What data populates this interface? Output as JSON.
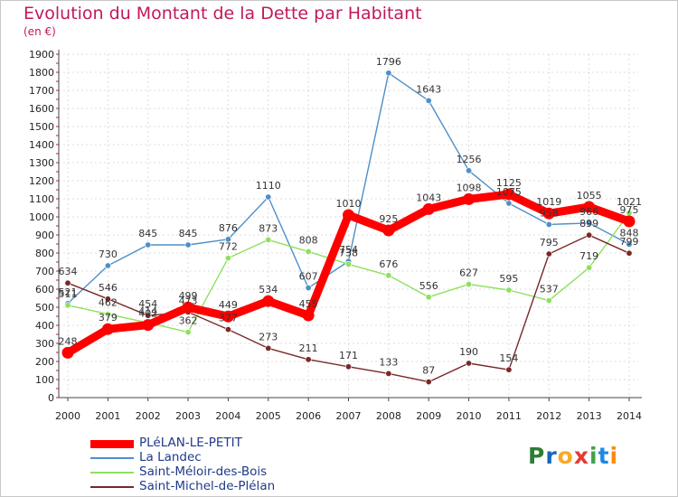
{
  "title": "Evolution du Montant de la Dette par Habitant",
  "unit": "(en €)",
  "brand": [
    "P",
    "r",
    "o",
    "x",
    "i",
    "t",
    "i"
  ],
  "brand_colors": [
    "#2e7d32",
    "#1565c0",
    "#f9a825",
    "#e53935",
    "#43a047",
    "#1e88e5",
    "#fb8c00"
  ],
  "chart_data": {
    "type": "line",
    "x": [
      "2000",
      "2001",
      "2002",
      "2003",
      "2004",
      "2005",
      "2006",
      "2007",
      "2008",
      "2009",
      "2010",
      "2011",
      "2012",
      "2013",
      "2014"
    ],
    "ylim": [
      0,
      1900
    ],
    "yticks": [
      "0",
      "100",
      "200",
      "300",
      "400",
      "500",
      "600",
      "700",
      "800",
      "900",
      "1000",
      "1100",
      "1200",
      "1300",
      "1400",
      "1500",
      "1600",
      "1700",
      "1800",
      "1900"
    ],
    "grid": true,
    "legend_position": "bottom-left",
    "series": [
      {
        "name": "PLéLAN-LE-PETIT",
        "color": "#ff0000",
        "values": [
          248,
          379,
          402,
          499,
          449,
          534,
          455,
          1010,
          925,
          1043,
          1098,
          1125,
          1019,
          1055,
          975
        ],
        "labels": [
          "248",
          "379",
          "402",
          "499",
          "449",
          "534",
          "455",
          "1010",
          "925",
          "1043",
          "1098",
          "1125",
          "1019",
          "1055",
          "975"
        ]
      },
      {
        "name": "La Landec",
        "color": "#4f8fc8",
        "values": [
          521,
          730,
          845,
          845,
          876,
          1110,
          607,
          754,
          1796,
          1643,
          1256,
          1075,
          958,
          966,
          848
        ],
        "labels": [
          "521",
          "730",
          "845",
          "845",
          "876",
          "1110",
          "607",
          "754",
          "1796",
          "1643",
          "1256",
          "1075",
          "958",
          "966",
          "848"
        ]
      },
      {
        "name": "Saint-Méloir-des-Bois",
        "color": "#8ee060",
        "values": [
          511,
          462,
          414,
          362,
          772,
          873,
          808,
          738,
          676,
          556,
          627,
          595,
          537,
          719,
          1021
        ],
        "labels": [
          "511",
          "462",
          "414",
          "362",
          "772",
          "873",
          "808",
          "738",
          "676",
          "556",
          "627",
          "595",
          "537",
          "719",
          "1021"
        ]
      },
      {
        "name": "Saint-Michel-de-Plélan",
        "color": "#7a2828",
        "values": [
          634,
          546,
          454,
          473,
          377,
          273,
          211,
          171,
          133,
          87,
          190,
          154,
          795,
          899,
          799
        ],
        "labels": [
          "634",
          "546",
          "454",
          "473",
          "377",
          "273",
          "211",
          "171",
          "133",
          "87",
          "190",
          "154",
          "795",
          "899",
          "799"
        ]
      }
    ]
  }
}
